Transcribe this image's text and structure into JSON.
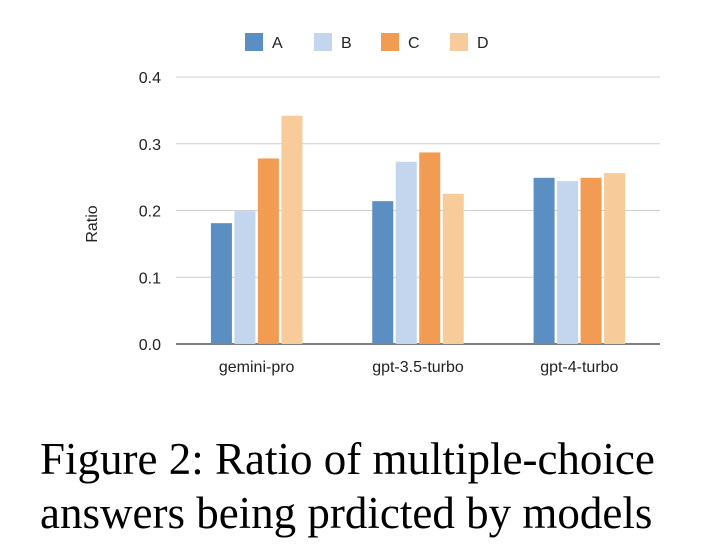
{
  "chart_data": {
    "type": "bar",
    "categories": [
      "gemini-pro",
      "gpt-3.5-turbo",
      "gpt-4-turbo"
    ],
    "series": [
      {
        "name": "A",
        "color": "#5b8ec2",
        "values": [
          0.181,
          0.214,
          0.249
        ]
      },
      {
        "name": "B",
        "color": "#c4d6ee",
        "values": [
          0.199,
          0.273,
          0.244
        ]
      },
      {
        "name": "C",
        "color": "#f19c52",
        "values": [
          0.278,
          0.287,
          0.249
        ]
      },
      {
        "name": "D",
        "color": "#f8cb9b",
        "values": [
          0.342,
          0.225,
          0.256
        ]
      }
    ],
    "ylabel": "Ratio",
    "xlabel": "",
    "ylim": [
      0,
      0.4
    ],
    "yticks": [
      "0.0",
      "0.1",
      "0.2",
      "0.3",
      "0.4"
    ],
    "grid": true,
    "legend_position": "top-center"
  },
  "caption": "Figure 2: Ratio of multiple-choice answers being prdicted by models"
}
